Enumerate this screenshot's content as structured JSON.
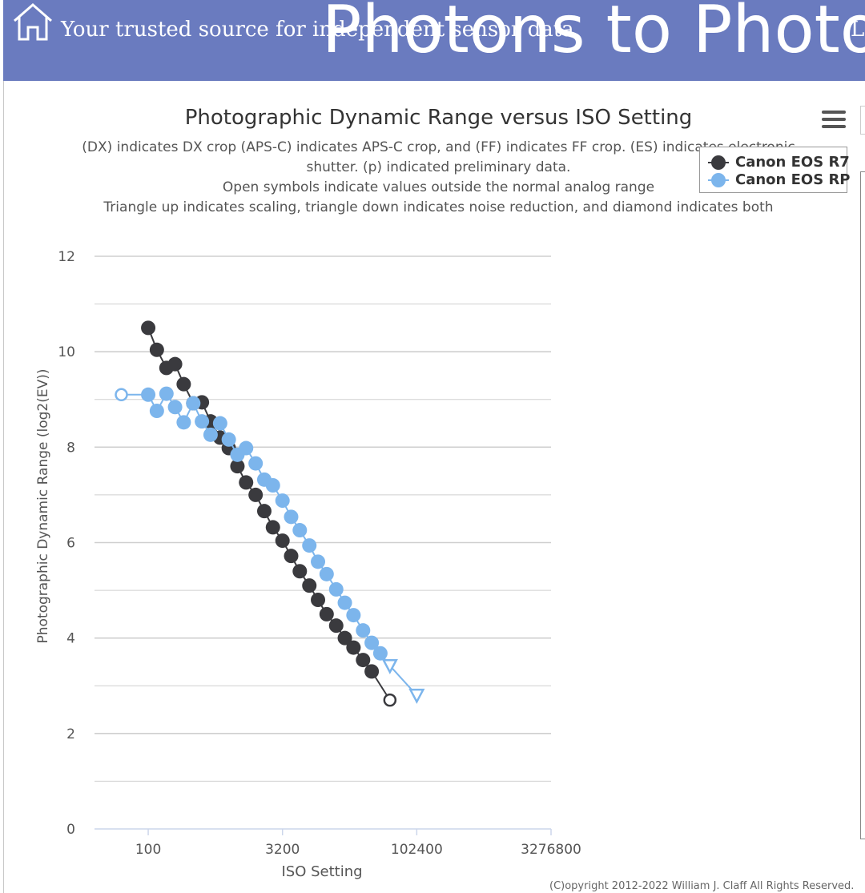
{
  "header": {
    "tagline": "Your trusted source for independent sensor data",
    "site_title": "Photons to Photos",
    "corner_text": "La",
    "home_icon": "home-icon",
    "background_color": "#6a7bbf"
  },
  "subtitle_lines": [
    "(DX) indicates DX crop (APS-C) indicates APS-C crop, and (FF) indicates FF crop. (ES) indicates electronic",
    "shutter. (p) indicated preliminary data.",
    "Open symbols indicate values outside the normal analog range",
    "Triangle up indicates scaling, triangle down indicates noise reduction, and diamond indicates both"
  ],
  "menu_icon": "hamburger-menu-icon",
  "copyright": "(C)opyright 2012-2022 William J. Claff All Rights Reserved.",
  "chart_data": {
    "type": "line",
    "title": "Photographic Dynamic Range versus ISO Setting",
    "xlabel": "ISO Setting",
    "ylabel": "Photographic Dynamic Range (log2(EV))",
    "x_scale": "log2",
    "xlim": [
      25,
      3276800
    ],
    "ylim": [
      0,
      12
    ],
    "x_ticks": [
      100,
      3200,
      102400,
      3276800
    ],
    "x_tick_labels": [
      "100",
      "3200",
      "102400",
      "3276800"
    ],
    "y_ticks": [
      0,
      2,
      4,
      6,
      8,
      10,
      12
    ],
    "y_tick_labels": [
      "0",
      "2",
      "4",
      "6",
      "8",
      "10",
      "12"
    ],
    "grid": true,
    "legend_position": "top-right",
    "series": [
      {
        "name": "Canon EOS R7",
        "color": "#3a3a3e",
        "points": [
          {
            "x": 100,
            "y": 10.5
          },
          {
            "x": 125,
            "y": 10.04
          },
          {
            "x": 160,
            "y": 9.66
          },
          {
            "x": 200,
            "y": 9.74
          },
          {
            "x": 250,
            "y": 9.32
          },
          {
            "x": 320,
            "y": 8.92
          },
          {
            "x": 400,
            "y": 8.94
          },
          {
            "x": 500,
            "y": 8.54
          },
          {
            "x": 640,
            "y": 8.2
          },
          {
            "x": 800,
            "y": 7.98
          },
          {
            "x": 1000,
            "y": 7.6
          },
          {
            "x": 1250,
            "y": 7.26
          },
          {
            "x": 1600,
            "y": 7.0
          },
          {
            "x": 2000,
            "y": 6.66
          },
          {
            "x": 2500,
            "y": 6.32
          },
          {
            "x": 3200,
            "y": 6.04
          },
          {
            "x": 4000,
            "y": 5.72
          },
          {
            "x": 5000,
            "y": 5.4
          },
          {
            "x": 6400,
            "y": 5.1
          },
          {
            "x": 8000,
            "y": 4.8
          },
          {
            "x": 10000,
            "y": 4.5
          },
          {
            "x": 12800,
            "y": 4.26
          },
          {
            "x": 16000,
            "y": 4.0
          },
          {
            "x": 20000,
            "y": 3.8
          },
          {
            "x": 25600,
            "y": 3.54
          },
          {
            "x": 32000,
            "y": 3.3
          },
          {
            "x": 51200,
            "y": 2.7,
            "marker": "open-circle"
          }
        ]
      },
      {
        "name": "Canon EOS RP",
        "color": "#7cb5ec",
        "points": [
          {
            "x": 50,
            "y": 9.1,
            "marker": "open-circle"
          },
          {
            "x": 100,
            "y": 9.1
          },
          {
            "x": 125,
            "y": 8.76
          },
          {
            "x": 160,
            "y": 9.12
          },
          {
            "x": 200,
            "y": 8.84
          },
          {
            "x": 250,
            "y": 8.52
          },
          {
            "x": 320,
            "y": 8.92
          },
          {
            "x": 400,
            "y": 8.54
          },
          {
            "x": 500,
            "y": 8.26
          },
          {
            "x": 640,
            "y": 8.5
          },
          {
            "x": 800,
            "y": 8.16
          },
          {
            "x": 1000,
            "y": 7.84
          },
          {
            "x": 1250,
            "y": 7.98
          },
          {
            "x": 1600,
            "y": 7.66
          },
          {
            "x": 2000,
            "y": 7.32
          },
          {
            "x": 2500,
            "y": 7.2
          },
          {
            "x": 3200,
            "y": 6.88
          },
          {
            "x": 4000,
            "y": 6.54
          },
          {
            "x": 5000,
            "y": 6.26
          },
          {
            "x": 6400,
            "y": 5.94
          },
          {
            "x": 8000,
            "y": 5.6
          },
          {
            "x": 10000,
            "y": 5.34
          },
          {
            "x": 12800,
            "y": 5.02
          },
          {
            "x": 16000,
            "y": 4.74
          },
          {
            "x": 20000,
            "y": 4.48
          },
          {
            "x": 25600,
            "y": 4.16
          },
          {
            "x": 32000,
            "y": 3.9
          },
          {
            "x": 40000,
            "y": 3.68
          },
          {
            "x": 51200,
            "y": 3.42,
            "marker": "open-triangle-down"
          },
          {
            "x": 102400,
            "y": 2.8,
            "marker": "open-triangle-down"
          }
        ]
      }
    ]
  }
}
